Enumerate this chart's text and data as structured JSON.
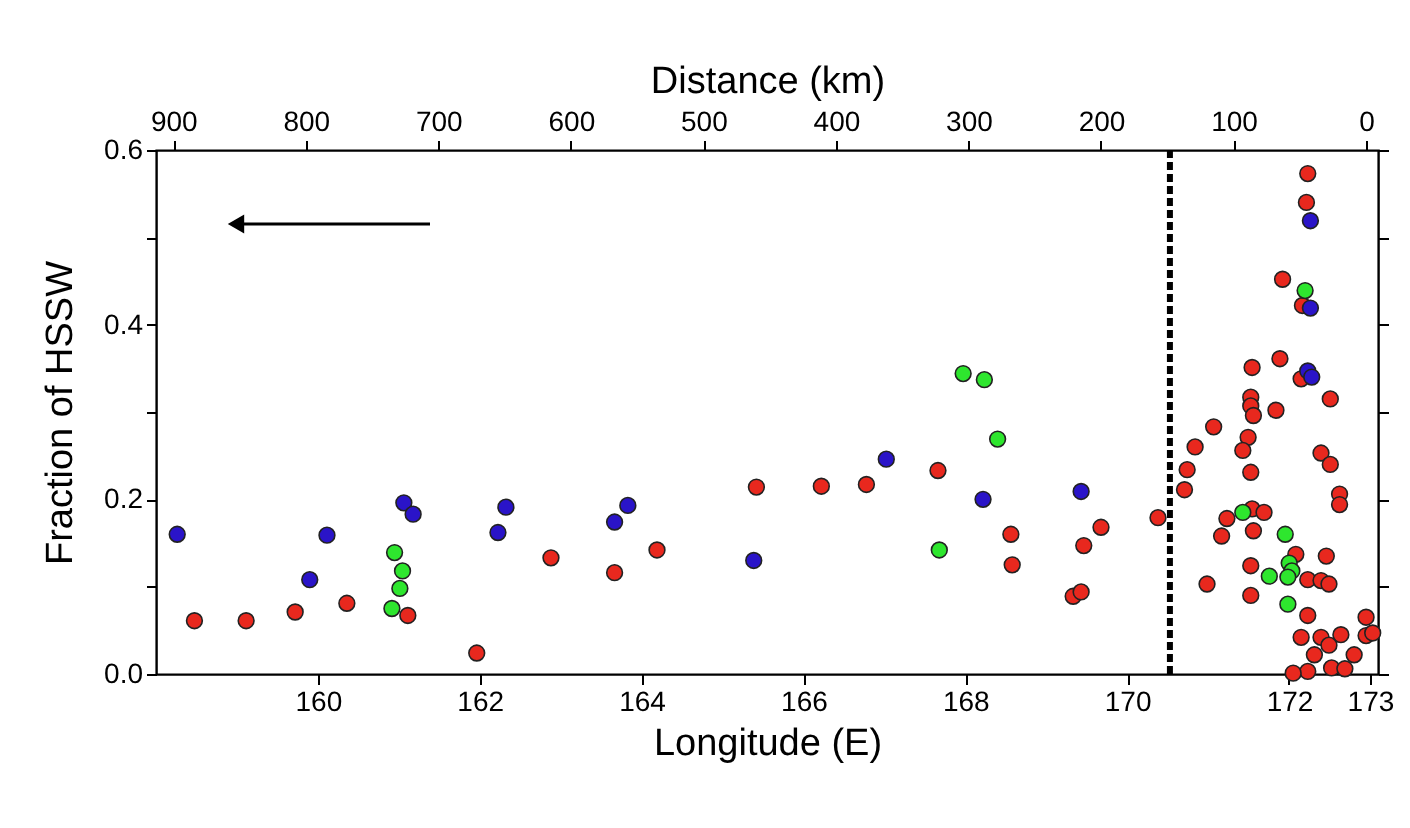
{
  "chart_data": {
    "type": "scatter",
    "xlabel": "Longitude (E)",
    "x2label": "Distance (km)",
    "ylabel": "Fraction of HSSW",
    "xlim": [
      158.0,
      173.1
    ],
    "x2lim": [
      913,
      -9
    ],
    "ylim": [
      0,
      0.6
    ],
    "xticks": [
      160,
      162,
      164,
      166,
      168,
      170,
      172,
      173
    ],
    "x2ticks": [
      900,
      800,
      700,
      600,
      500,
      400,
      300,
      200,
      100,
      0
    ],
    "yticks": [
      {
        "value": 0,
        "label": "0.0"
      },
      {
        "value": 0.1,
        "label": null
      },
      {
        "value": 0.2,
        "label": "0.2"
      },
      {
        "value": 0.3,
        "label": null
      },
      {
        "value": 0.4,
        "label": "0.4"
      },
      {
        "value": 0.5,
        "label": null
      },
      {
        "value": 0.6,
        "label": "0.6"
      }
    ],
    "grid": false,
    "marker": "circle",
    "ref_lines": [
      {
        "axis": "x2",
        "value": 148,
        "line_style": "dashed",
        "color": "#000000"
      }
    ],
    "series": [
      {
        "color": "#e8281e",
        "axis": "x2",
        "x": [
          884,
          845,
          808,
          769,
          723,
          671,
          615,
          567,
          535,
          460,
          411,
          377,
          323,
          268,
          267,
          200,
          213,
          221,
          215,
          157,
          44,
          45,
          63,
          48,
          65,
          86,
          49,
          27,
          87,
          87,
          85,
          68,
          115,
          89,
          129,
          93,
          34,
          27,
          135,
          87,
          137,
          20,
          20,
          86,
          77,
          105,
          109,
          85,
          53,
          30,
          87,
          44,
          34,
          28,
          120,
          87,
          44,
          0,
          49,
          34,
          19,
          9,
          39,
          26,
          44,
          0,
          55,
          16,
          -5,
          28
        ],
        "values": [
          0.061,
          0.061,
          0.071,
          0.081,
          0.067,
          0.024,
          0.133,
          0.116,
          0.142,
          0.214,
          0.215,
          0.217,
          0.233,
          0.16,
          0.125,
          0.168,
          0.147,
          0.089,
          0.094,
          0.179,
          0.573,
          0.54,
          0.452,
          0.422,
          0.361,
          0.351,
          0.338,
          0.315,
          0.317,
          0.307,
          0.296,
          0.302,
          0.283,
          0.271,
          0.26,
          0.256,
          0.253,
          0.24,
          0.234,
          0.231,
          0.211,
          0.206,
          0.194,
          0.189,
          0.185,
          0.178,
          0.158,
          0.164,
          0.137,
          0.135,
          0.124,
          0.108,
          0.107,
          0.103,
          0.103,
          0.09,
          0.067,
          0.065,
          0.042,
          0.042,
          0.045,
          0.022,
          0.022,
          0.007,
          0.003,
          0.044,
          0.001,
          0.006,
          0.047,
          0.033
        ]
      },
      {
        "color": "#2a14c8",
        "axis": "x2",
        "x": [
          897,
          797,
          784,
          726,
          719,
          655,
          649,
          567,
          557,
          462,
          362,
          289,
          215,
          42,
          42,
          44,
          41
        ],
        "values": [
          0.16,
          0.108,
          0.159,
          0.196,
          0.183,
          0.162,
          0.191,
          0.174,
          0.193,
          0.13,
          0.246,
          0.2,
          0.209,
          0.519,
          0.419,
          0.347,
          0.34
        ]
      },
      {
        "color": "#2ee62e",
        "axis": "x2",
        "x": [
          733,
          727,
          729,
          735,
          322,
          304,
          288,
          278,
          46,
          93,
          61,
          58,
          56,
          73,
          59,
          59
        ],
        "values": [
          0.139,
          0.118,
          0.098,
          0.075,
          0.142,
          0.344,
          0.337,
          0.269,
          0.439,
          0.185,
          0.16,
          0.127,
          0.118,
          0.112,
          0.111,
          0.08
        ]
      }
    ]
  }
}
